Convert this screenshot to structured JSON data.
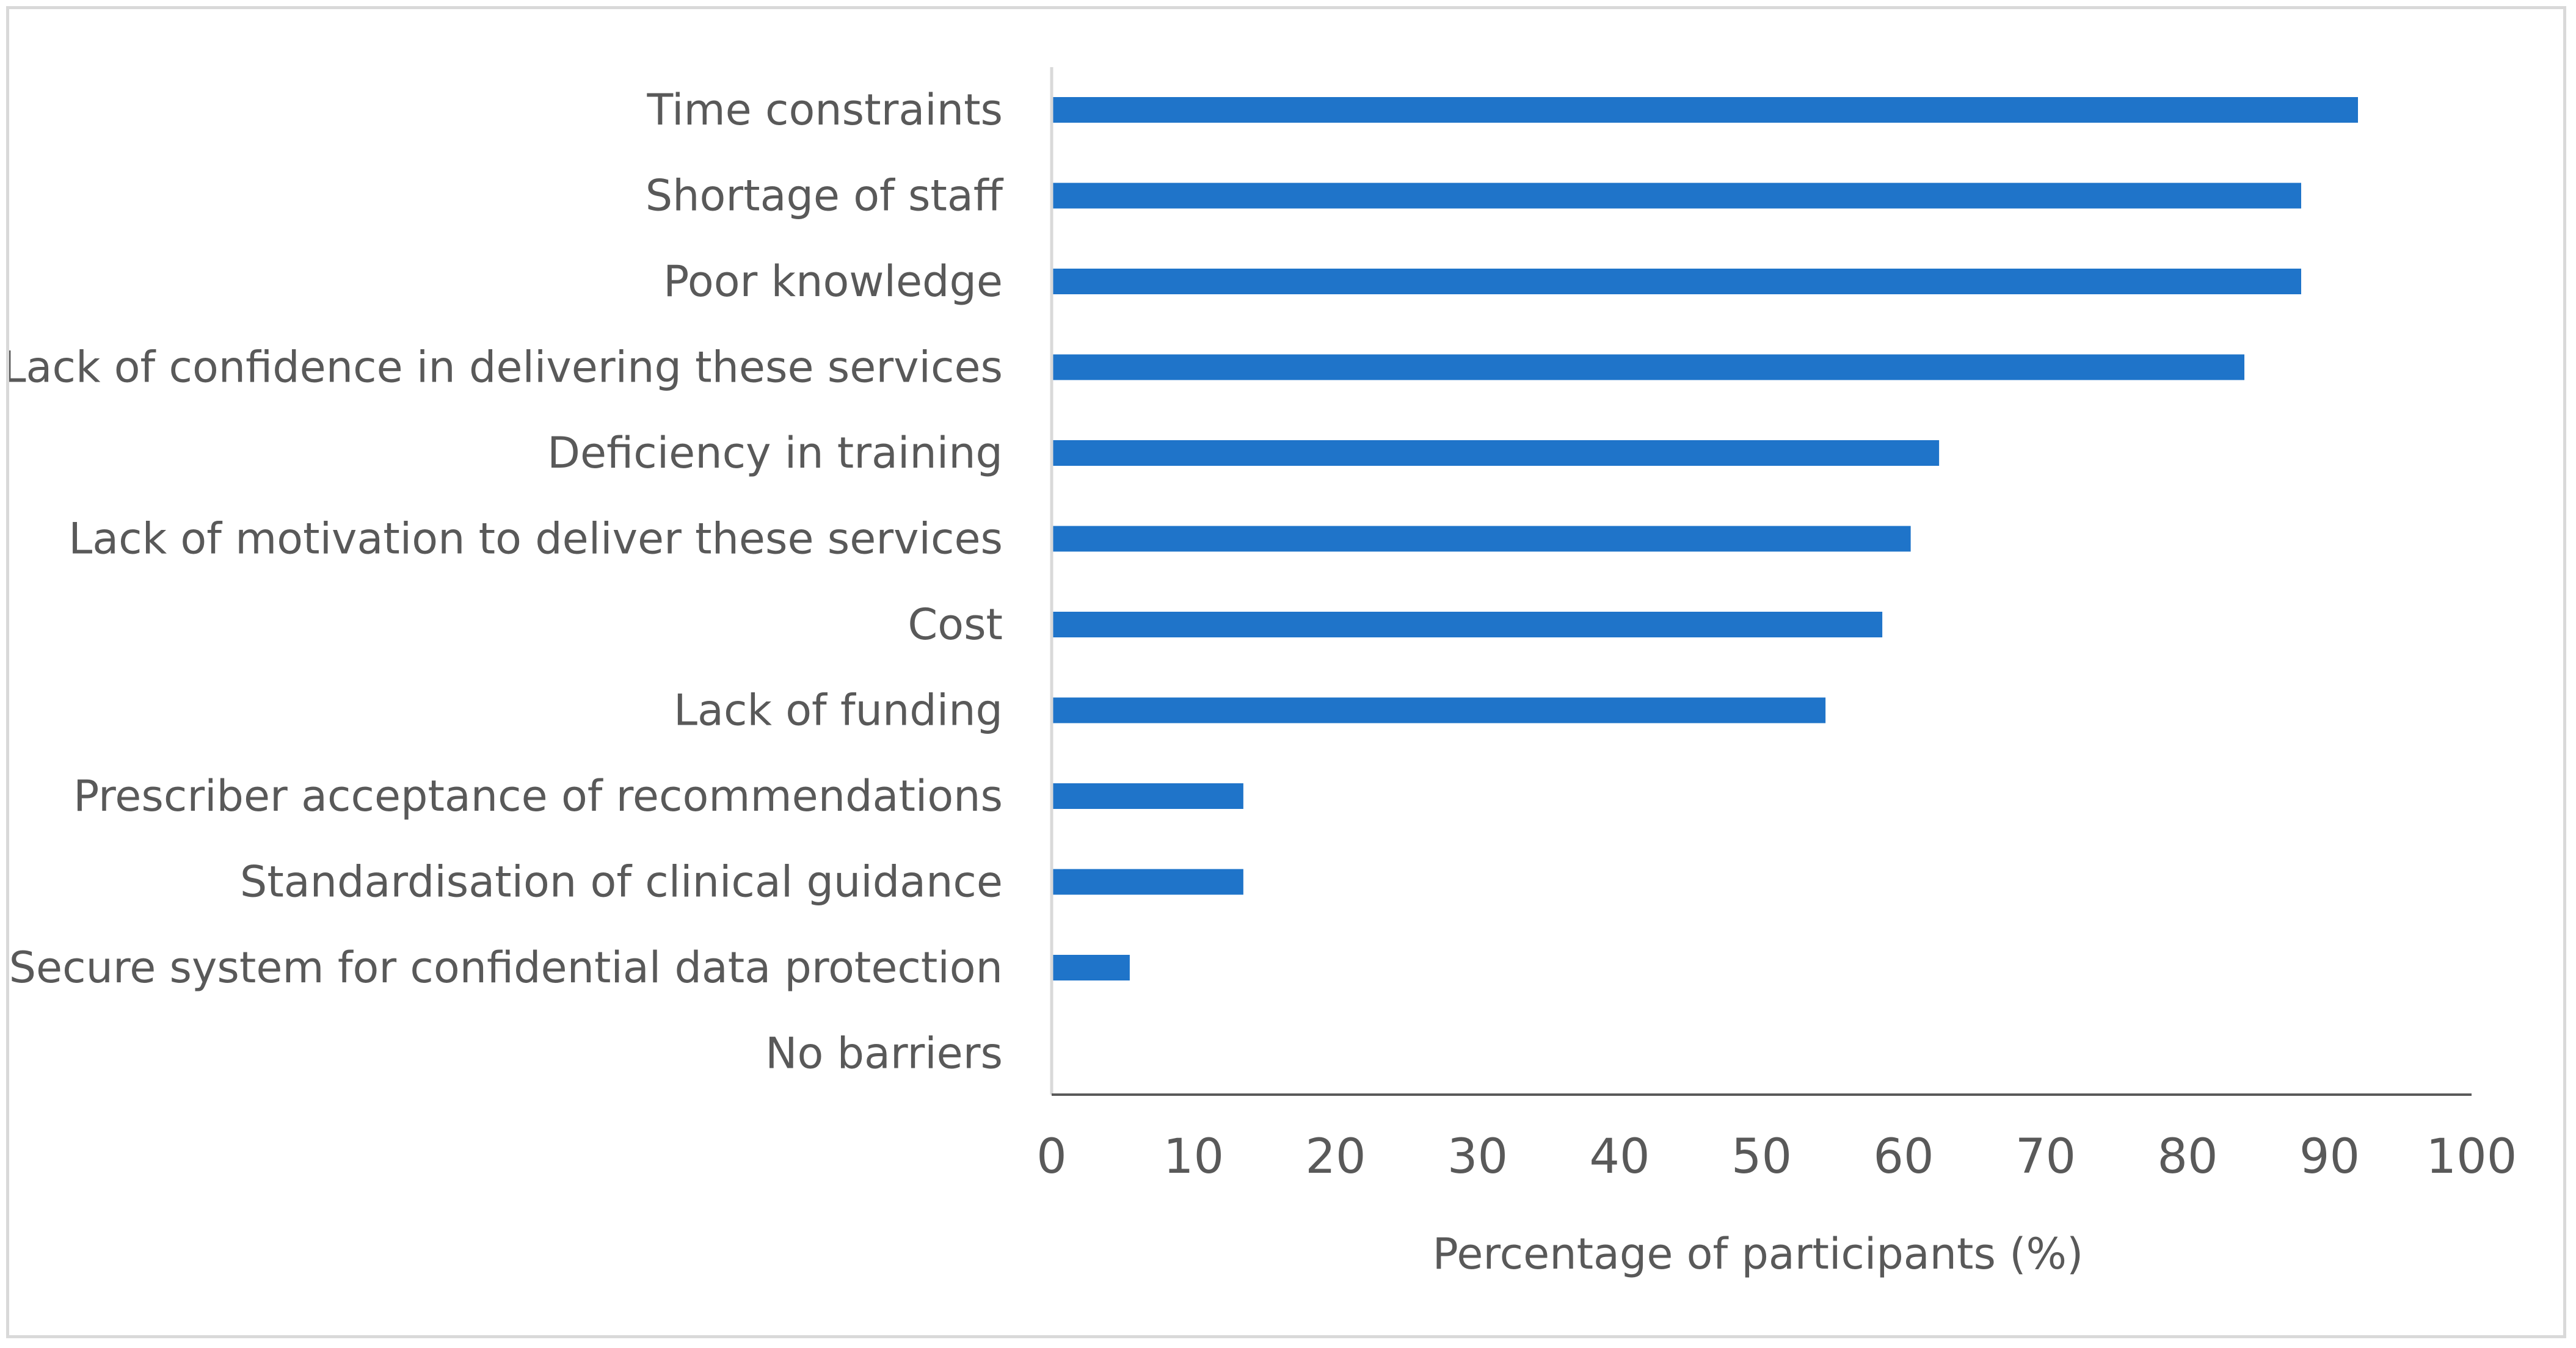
{
  "chart_data": {
    "type": "bar",
    "orientation": "horizontal",
    "title": "",
    "xlabel": "Percentage of participants (%)",
    "ylabel": "",
    "xlim": [
      0,
      100
    ],
    "xticks": [
      0,
      10,
      20,
      30,
      40,
      50,
      60,
      70,
      80,
      90,
      100
    ],
    "grid": false,
    "legend": "none",
    "bar_color": "#1f74c9",
    "categories": [
      "Time constraints",
      "Shortage of staff",
      "Poor knowledge",
      "Lack of confidence in delivering these services",
      "Deficiency in training",
      "Lack of motivation to deliver these services",
      "Cost",
      "Lack of funding",
      "Prescriber acceptance of recommendations",
      "Standardisation of clinical guidance",
      "Secure system for confidential data protection",
      "No barriers"
    ],
    "values": [
      92,
      88,
      88,
      84,
      62.5,
      60.5,
      58.5,
      54.5,
      13.5,
      13.5,
      5.5,
      0
    ]
  }
}
